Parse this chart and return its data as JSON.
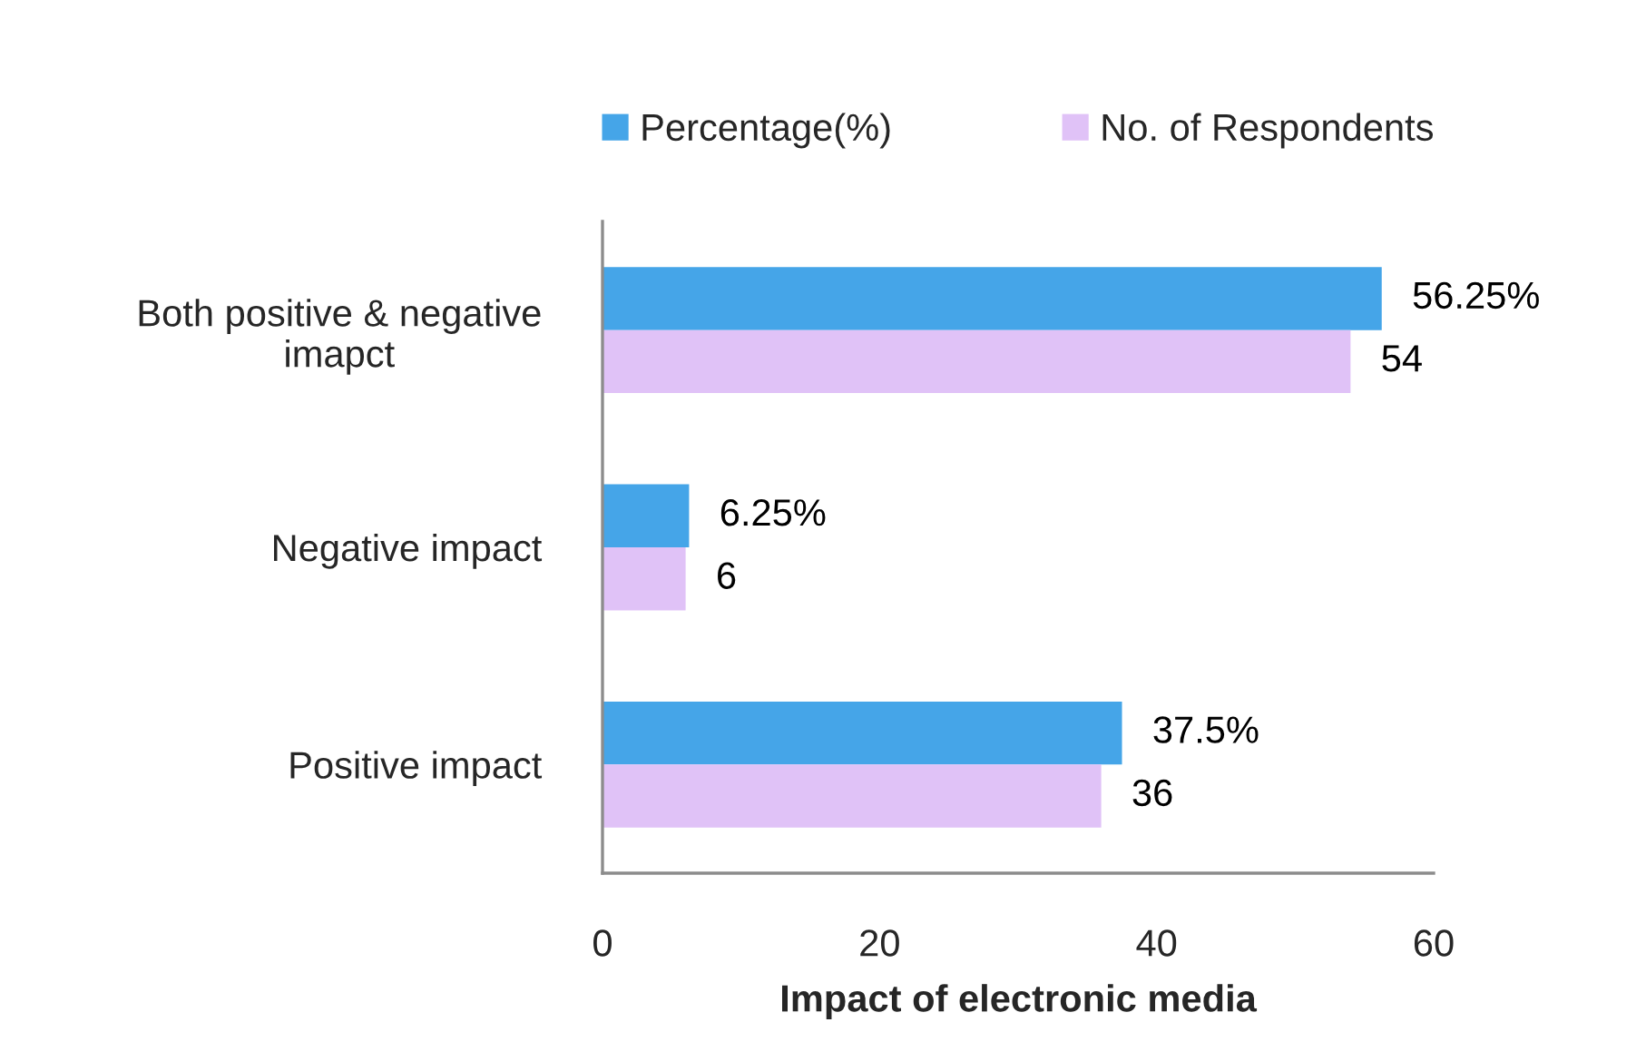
{
  "chart_data": {
    "type": "bar",
    "orientation": "horizontal",
    "categories": [
      "Both positive & negative\nimapct",
      "Negative impact",
      "Positive impact"
    ],
    "series": [
      {
        "name": "Percentage(%)",
        "color": "#45a5e8",
        "values": [
          56.25,
          6.25,
          37.5
        ],
        "value_labels": [
          "56.25%",
          "6.25%",
          "37.5%"
        ]
      },
      {
        "name": "No. of Respondents",
        "color": "#e0c2f7",
        "values": [
          54,
          6,
          36
        ],
        "value_labels": [
          "54",
          "6",
          "36"
        ]
      }
    ],
    "xlabel": "Impact of electronic media",
    "xlim": [
      0,
      60
    ],
    "xticks": [
      0,
      20,
      40,
      60
    ],
    "legend": "top"
  }
}
